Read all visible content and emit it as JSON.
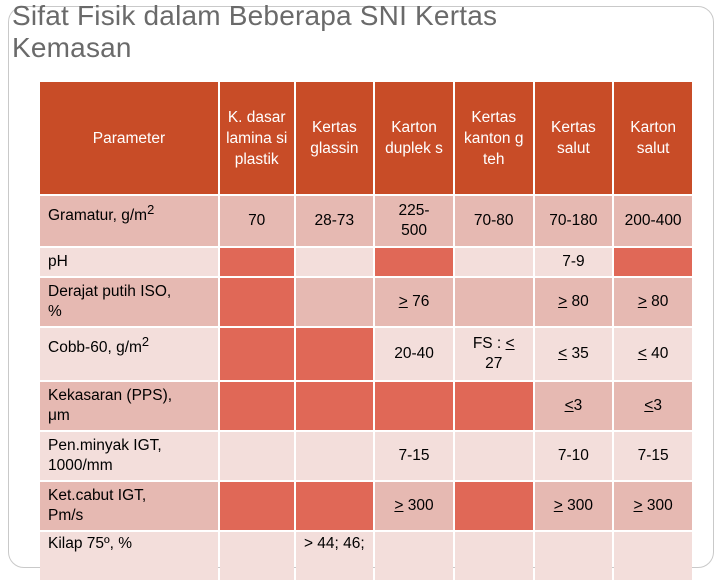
{
  "title": {
    "line1": "Sifat Fisik dalam Beberapa SNI Kertas",
    "line2": "Kemasan"
  },
  "table": {
    "headers": [
      "Parameter",
      "K. dasar lamina si plastik",
      "Kertas glassin",
      "Karton duplek s",
      "Kertas kanton g teh",
      "Kertas salut",
      "Karton salut"
    ],
    "rows": [
      {
        "param": "Gramatur, g/m²",
        "c1": "70",
        "c2": "28-73",
        "c3": "225-500",
        "c4": "70-80",
        "c5": "70-180",
        "c6": "200-400"
      },
      {
        "param": "pH",
        "c5": "7-9"
      },
      {
        "param": "Derajat putih ISO, %",
        "c3": "> 76",
        "c5": "> 80",
        "c6": "> 80"
      },
      {
        "param": "Cobb-60, g/m²",
        "c3": "20-40",
        "c4": "FS : < 27",
        "c5": "< 35",
        "c6": "< 40"
      },
      {
        "param": "Kekasaran (PPS), μm",
        "c5": "<3",
        "c6": "<3"
      },
      {
        "param": "Pen.minyak IGT, 1000/mm",
        "c3": "7-15",
        "c5": "7-10",
        "c6": "7-15"
      },
      {
        "param": "Ket.cabut IGT, Pm/s",
        "c3": "> 300",
        "c5": "> 300",
        "c6": "> 300"
      },
      {
        "param": "Kilap 75º, %",
        "c2": "> 44; 46;"
      }
    ]
  },
  "colors": {
    "header_bg": "#c84c27",
    "row_dark": "#e06857",
    "row_light": "#f3dedb",
    "title_text": "#6a6a6a"
  }
}
